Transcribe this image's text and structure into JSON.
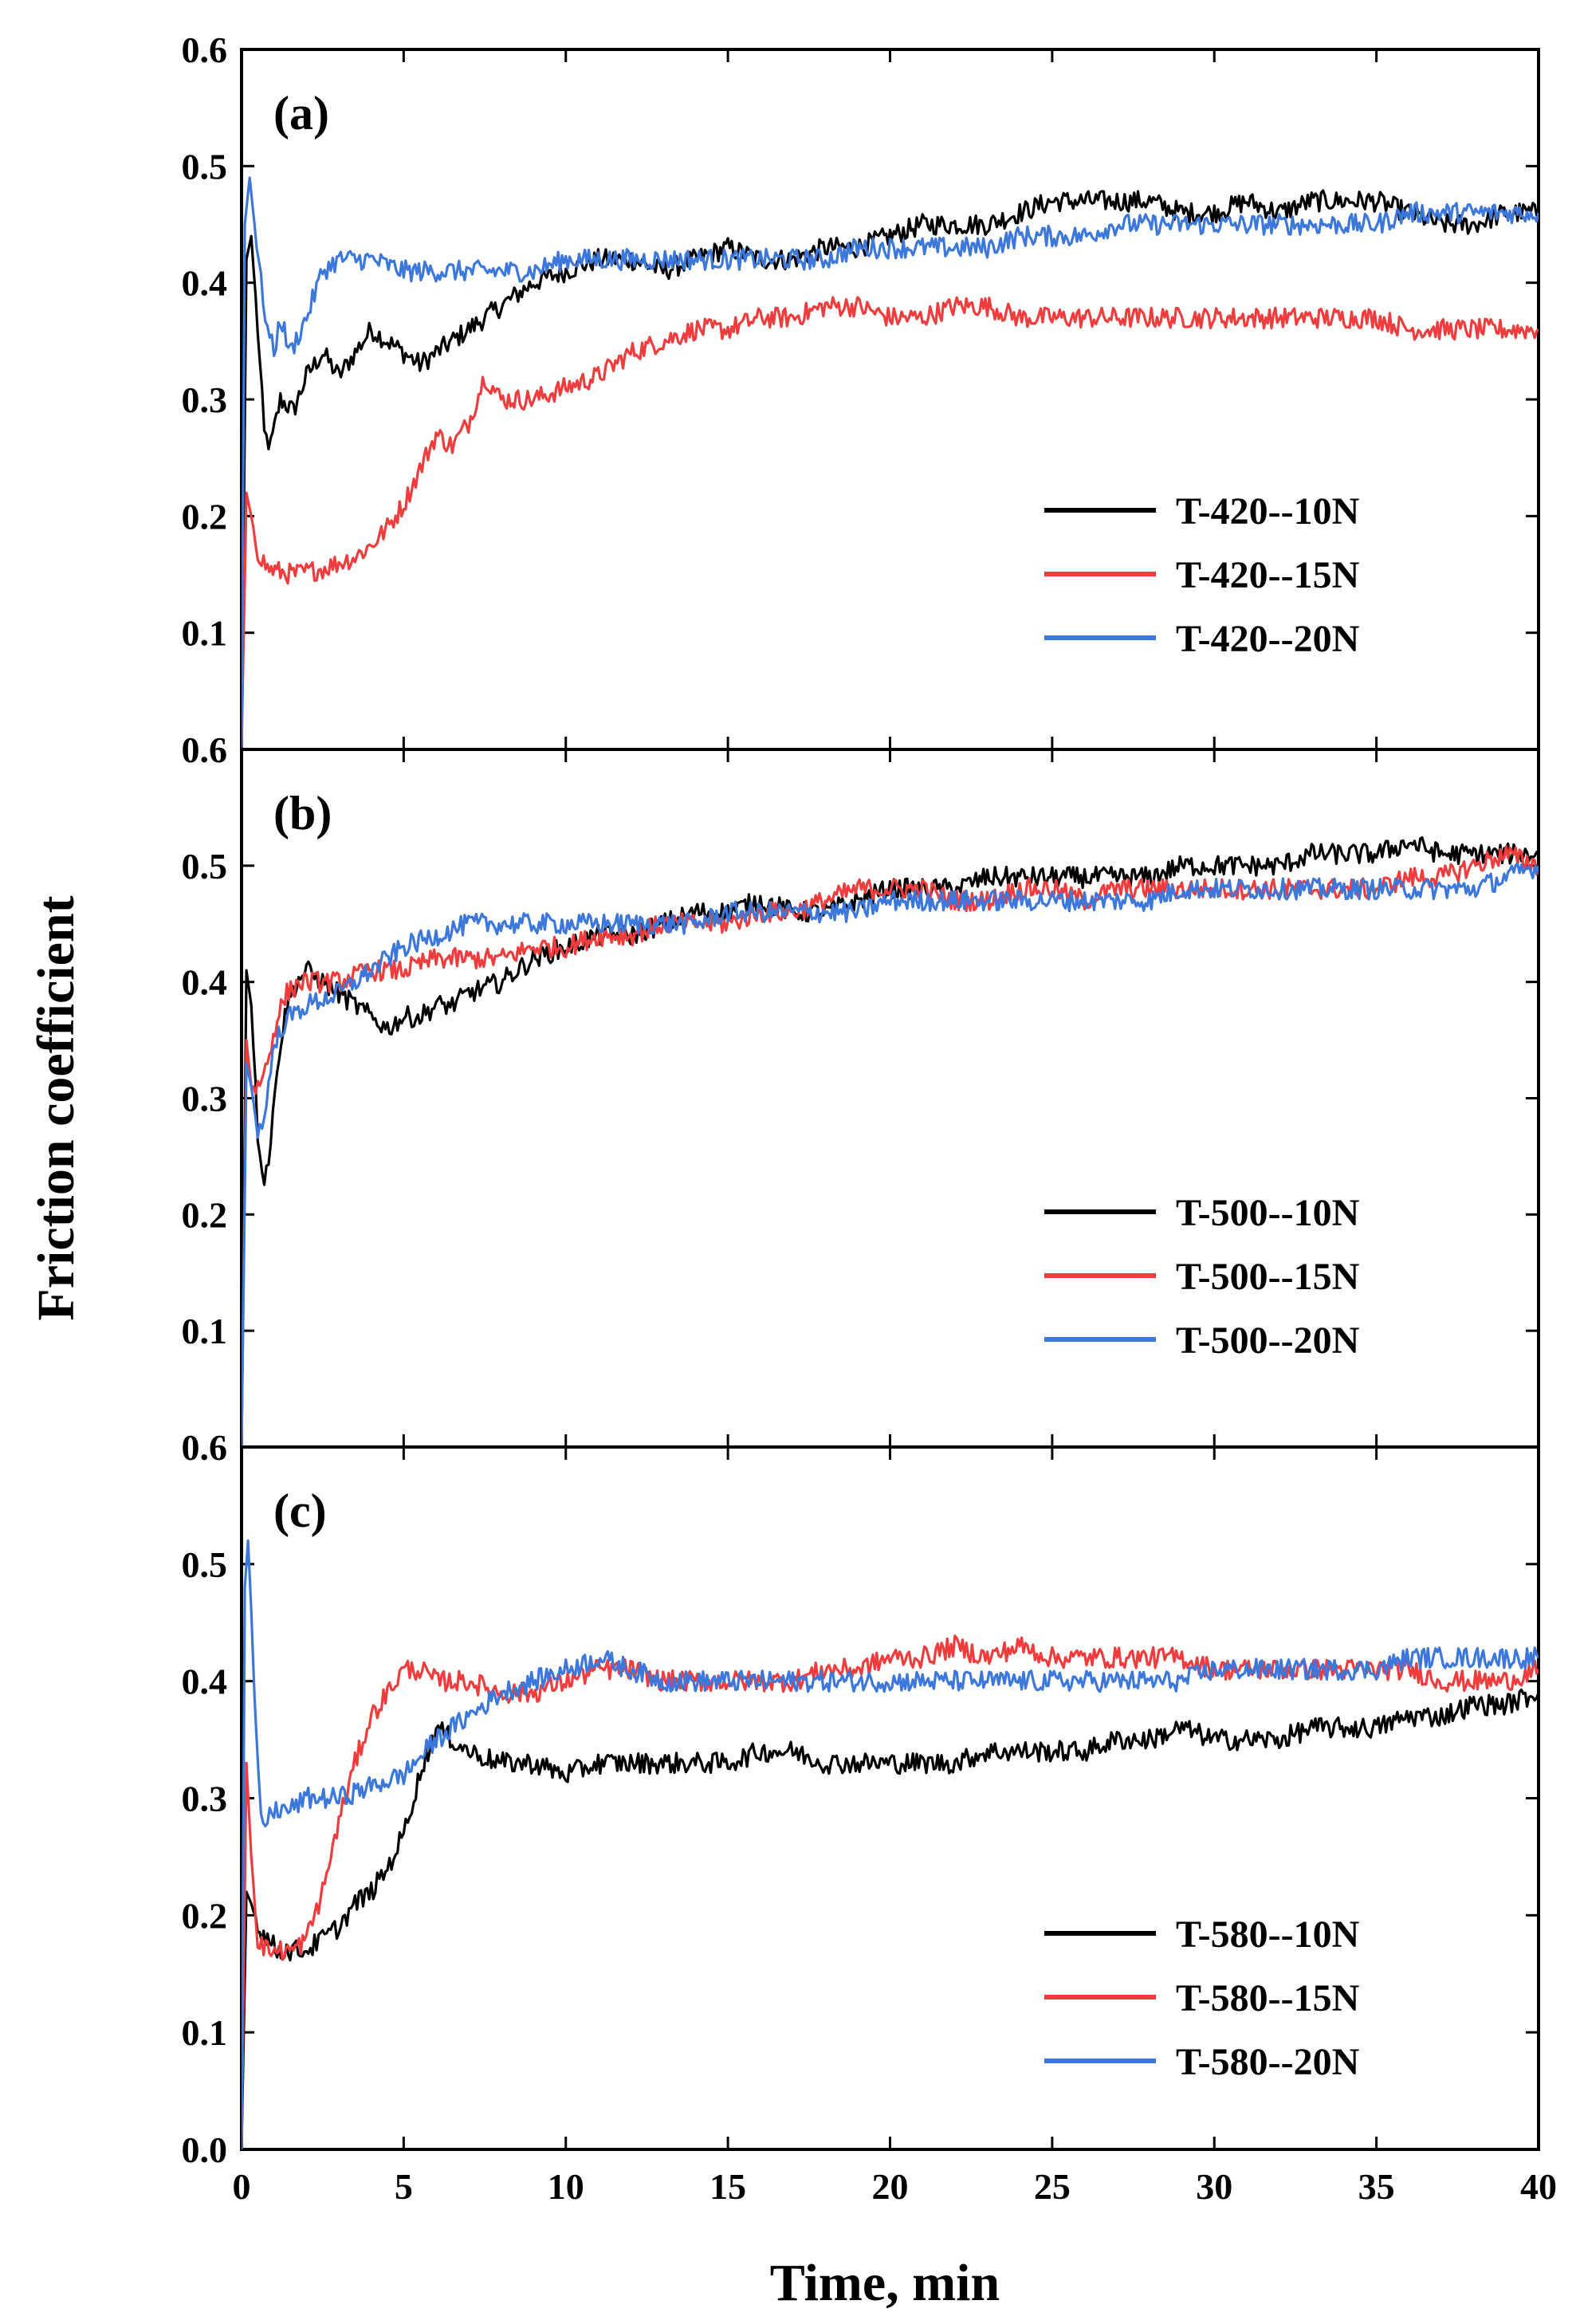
{
  "figure": {
    "ylabel": "Friction coefficient",
    "xlabel": "Time, min"
  },
  "chart_data": [
    {
      "type": "line",
      "panel_label": "(a)",
      "xlim": [
        0,
        40
      ],
      "ylim": [
        0,
        0.6
      ],
      "x_ticks": [
        0,
        5,
        10,
        15,
        20,
        25,
        30,
        35,
        40
      ],
      "y_ticks": [
        0.1,
        0.2,
        0.3,
        0.4,
        0.5,
        0.6
      ],
      "xlabel": "Time, min",
      "ylabel": "Friction coefficient",
      "legend_position": "center-right",
      "series": [
        {
          "name": "T-420--10N",
          "color": "#000000",
          "x": [
            0,
            0.15,
            0.3,
            0.5,
            0.7,
            0.9,
            1.2,
            1.6,
            2,
            2.5,
            3,
            3.5,
            4,
            4.5,
            5,
            5.5,
            6,
            7,
            8,
            9,
            10,
            11,
            12,
            13,
            14,
            15,
            16,
            17,
            18,
            19,
            20,
            21,
            22,
            23,
            24,
            25,
            26,
            27,
            28,
            29,
            30,
            31,
            32,
            33,
            34,
            35,
            36,
            37,
            38,
            39,
            40
          ],
          "y": [
            0.0,
            0.42,
            0.44,
            0.36,
            0.27,
            0.26,
            0.3,
            0.29,
            0.32,
            0.34,
            0.32,
            0.34,
            0.36,
            0.35,
            0.34,
            0.33,
            0.34,
            0.36,
            0.38,
            0.4,
            0.41,
            0.42,
            0.42,
            0.41,
            0.42,
            0.43,
            0.42,
            0.42,
            0.43,
            0.43,
            0.44,
            0.45,
            0.45,
            0.45,
            0.46,
            0.47,
            0.47,
            0.47,
            0.47,
            0.46,
            0.46,
            0.47,
            0.46,
            0.47,
            0.47,
            0.47,
            0.46,
            0.45,
            0.45,
            0.46,
            0.46
          ]
        },
        {
          "name": "T-420--15N",
          "color": "#f03c3c",
          "x": [
            0,
            0.15,
            0.3,
            0.5,
            0.8,
            1.2,
            1.6,
            2,
            2.5,
            3,
            3.5,
            4,
            4.5,
            5,
            5.5,
            6,
            6.5,
            7,
            7.5,
            8,
            9,
            10,
            11,
            12,
            13,
            14,
            15,
            16,
            17,
            18,
            19,
            20,
            21,
            22,
            23,
            24,
            25,
            26,
            27,
            28,
            29,
            30,
            31,
            32,
            33,
            34,
            35,
            36,
            37,
            38,
            39,
            40
          ],
          "y": [
            0.0,
            0.22,
            0.2,
            0.17,
            0.155,
            0.152,
            0.15,
            0.152,
            0.155,
            0.16,
            0.165,
            0.175,
            0.19,
            0.21,
            0.24,
            0.27,
            0.26,
            0.28,
            0.32,
            0.3,
            0.3,
            0.31,
            0.32,
            0.34,
            0.35,
            0.36,
            0.36,
            0.37,
            0.37,
            0.38,
            0.38,
            0.37,
            0.37,
            0.38,
            0.38,
            0.37,
            0.37,
            0.37,
            0.37,
            0.37,
            0.37,
            0.37,
            0.37,
            0.37,
            0.37,
            0.37,
            0.37,
            0.36,
            0.36,
            0.36,
            0.36,
            0.36
          ]
        },
        {
          "name": "T-420--20N",
          "color": "#3c78dc",
          "x": [
            0,
            0.1,
            0.25,
            0.4,
            0.6,
            0.8,
            1.0,
            1.2,
            1.5,
            2,
            2.5,
            3,
            4,
            5,
            6,
            7,
            8,
            9,
            10,
            11,
            12,
            13,
            14,
            15,
            16,
            17,
            18,
            19,
            20,
            21,
            22,
            23,
            24,
            25,
            26,
            27,
            28,
            29,
            30,
            31,
            32,
            33,
            34,
            35,
            36,
            37,
            38,
            39,
            40
          ],
          "y": [
            0.0,
            0.45,
            0.49,
            0.45,
            0.4,
            0.36,
            0.34,
            0.37,
            0.34,
            0.37,
            0.41,
            0.42,
            0.42,
            0.41,
            0.41,
            0.41,
            0.41,
            0.41,
            0.42,
            0.42,
            0.42,
            0.42,
            0.42,
            0.42,
            0.42,
            0.42,
            0.42,
            0.43,
            0.43,
            0.43,
            0.43,
            0.43,
            0.44,
            0.44,
            0.44,
            0.45,
            0.45,
            0.45,
            0.45,
            0.45,
            0.45,
            0.45,
            0.45,
            0.45,
            0.46,
            0.46,
            0.46,
            0.46,
            0.46
          ]
        }
      ]
    },
    {
      "type": "line",
      "panel_label": "(b)",
      "xlim": [
        0,
        40
      ],
      "ylim": [
        0,
        0.6
      ],
      "x_ticks": [
        0,
        5,
        10,
        15,
        20,
        25,
        30,
        35,
        40
      ],
      "y_ticks": [
        0.1,
        0.2,
        0.3,
        0.4,
        0.5,
        0.6
      ],
      "xlabel": "Time, min",
      "ylabel": "Friction coefficient",
      "legend_position": "center-right",
      "series": [
        {
          "name": "T-500--10N",
          "color": "#000000",
          "x": [
            0,
            0.15,
            0.3,
            0.5,
            0.7,
            0.9,
            1.1,
            1.4,
            1.7,
            2,
            2.5,
            3,
            3.5,
            4,
            4.5,
            5,
            5.5,
            6,
            6.5,
            7,
            8,
            9,
            10,
            11,
            12,
            13,
            14,
            15,
            16,
            17,
            18,
            19,
            20,
            21,
            22,
            23,
            24,
            25,
            26,
            27,
            28,
            29,
            30,
            31,
            32,
            33,
            34,
            35,
            36,
            37,
            38,
            39,
            40
          ],
          "y": [
            0.0,
            0.41,
            0.38,
            0.27,
            0.23,
            0.26,
            0.33,
            0.38,
            0.4,
            0.41,
            0.4,
            0.39,
            0.38,
            0.37,
            0.36,
            0.37,
            0.37,
            0.38,
            0.38,
            0.39,
            0.4,
            0.42,
            0.43,
            0.44,
            0.44,
            0.45,
            0.46,
            0.46,
            0.47,
            0.46,
            0.46,
            0.47,
            0.48,
            0.48,
            0.48,
            0.49,
            0.49,
            0.49,
            0.49,
            0.49,
            0.49,
            0.5,
            0.5,
            0.5,
            0.5,
            0.51,
            0.51,
            0.51,
            0.52,
            0.51,
            0.51,
            0.51,
            0.51
          ]
        },
        {
          "name": "T-500--15N",
          "color": "#f03c3c",
          "x": [
            0,
            0.15,
            0.3,
            0.5,
            0.8,
            1.1,
            1.4,
            1.8,
            2,
            3,
            4,
            5,
            6,
            7,
            8,
            9,
            10,
            11,
            12,
            13,
            14,
            15,
            16,
            17,
            18,
            19,
            20,
            21,
            22,
            23,
            24,
            25,
            26,
            27,
            28,
            29,
            30,
            31,
            32,
            33,
            34,
            35,
            36,
            37,
            38,
            39,
            40
          ],
          "y": [
            0.0,
            0.35,
            0.31,
            0.31,
            0.33,
            0.37,
            0.39,
            0.4,
            0.4,
            0.4,
            0.41,
            0.41,
            0.42,
            0.42,
            0.42,
            0.43,
            0.43,
            0.44,
            0.44,
            0.45,
            0.45,
            0.45,
            0.46,
            0.46,
            0.47,
            0.48,
            0.48,
            0.48,
            0.47,
            0.47,
            0.48,
            0.48,
            0.47,
            0.48,
            0.48,
            0.48,
            0.48,
            0.48,
            0.48,
            0.48,
            0.48,
            0.48,
            0.49,
            0.49,
            0.5,
            0.51,
            0.5
          ]
        },
        {
          "name": "T-500--20N",
          "color": "#3c78dc",
          "x": [
            0,
            0.15,
            0.3,
            0.5,
            0.7,
            0.9,
            1.2,
            1.5,
            2,
            3,
            4,
            5,
            6,
            7,
            8,
            9,
            10,
            11,
            12,
            13,
            14,
            15,
            16,
            17,
            18,
            19,
            20,
            21,
            22,
            23,
            24,
            25,
            26,
            27,
            28,
            29,
            30,
            31,
            32,
            33,
            34,
            35,
            36,
            37,
            38,
            39,
            40
          ],
          "y": [
            0.0,
            0.33,
            0.31,
            0.27,
            0.28,
            0.33,
            0.36,
            0.37,
            0.38,
            0.39,
            0.41,
            0.43,
            0.44,
            0.45,
            0.45,
            0.45,
            0.45,
            0.45,
            0.45,
            0.45,
            0.45,
            0.46,
            0.46,
            0.46,
            0.46,
            0.46,
            0.47,
            0.47,
            0.47,
            0.47,
            0.47,
            0.47,
            0.47,
            0.47,
            0.47,
            0.48,
            0.48,
            0.48,
            0.48,
            0.48,
            0.48,
            0.48,
            0.48,
            0.48,
            0.48,
            0.49,
            0.5
          ]
        }
      ]
    },
    {
      "type": "line",
      "panel_label": "(c)",
      "xlim": [
        0,
        40
      ],
      "ylim": [
        0,
        0.6
      ],
      "x_ticks": [
        0,
        5,
        10,
        15,
        20,
        25,
        30,
        35,
        40
      ],
      "y_ticks": [
        0.0,
        0.1,
        0.2,
        0.3,
        0.4,
        0.5,
        0.6
      ],
      "xlabel": "Time, min",
      "ylabel": "Friction coefficient",
      "legend_position": "bottom-right",
      "series": [
        {
          "name": "T-580--10N",
          "color": "#000000",
          "x": [
            0,
            0.15,
            0.3,
            0.5,
            0.8,
            1.1,
            1.5,
            2,
            2.5,
            3,
            3.5,
            4,
            4.5,
            5,
            5.5,
            6,
            6.5,
            7,
            8,
            9,
            10,
            11,
            12,
            13,
            14,
            15,
            16,
            17,
            18,
            19,
            20,
            21,
            22,
            23,
            24,
            25,
            26,
            27,
            28,
            29,
            30,
            31,
            32,
            33,
            34,
            35,
            36,
            37,
            38,
            39,
            40
          ],
          "y": [
            0.0,
            0.22,
            0.21,
            0.19,
            0.18,
            0.17,
            0.17,
            0.17,
            0.18,
            0.19,
            0.21,
            0.22,
            0.24,
            0.27,
            0.32,
            0.36,
            0.35,
            0.34,
            0.33,
            0.33,
            0.32,
            0.33,
            0.33,
            0.33,
            0.33,
            0.33,
            0.34,
            0.34,
            0.33,
            0.33,
            0.33,
            0.33,
            0.33,
            0.34,
            0.34,
            0.34,
            0.34,
            0.35,
            0.35,
            0.36,
            0.35,
            0.35,
            0.35,
            0.36,
            0.36,
            0.36,
            0.37,
            0.37,
            0.38,
            0.38,
            0.39
          ]
        },
        {
          "name": "T-580--15N",
          "color": "#f03c3c",
          "x": [
            0,
            0.15,
            0.3,
            0.5,
            0.8,
            1.2,
            1.6,
            2,
            2.5,
            3,
            3.5,
            4,
            4.5,
            5,
            5.5,
            6,
            7,
            8,
            9,
            10,
            11,
            12,
            13,
            14,
            15,
            16,
            17,
            18,
            19,
            20,
            21,
            22,
            23,
            24,
            25,
            26,
            27,
            28,
            29,
            30,
            31,
            32,
            33,
            34,
            35,
            36,
            37,
            38,
            39,
            40
          ],
          "y": [
            0.0,
            0.33,
            0.25,
            0.18,
            0.17,
            0.17,
            0.17,
            0.18,
            0.22,
            0.28,
            0.33,
            0.37,
            0.39,
            0.41,
            0.41,
            0.4,
            0.4,
            0.39,
            0.39,
            0.4,
            0.41,
            0.41,
            0.4,
            0.4,
            0.4,
            0.4,
            0.4,
            0.41,
            0.41,
            0.42,
            0.42,
            0.43,
            0.42,
            0.43,
            0.42,
            0.42,
            0.42,
            0.42,
            0.42,
            0.41,
            0.41,
            0.41,
            0.41,
            0.41,
            0.41,
            0.41,
            0.4,
            0.4,
            0.4,
            0.41
          ]
        },
        {
          "name": "T-580--20N",
          "color": "#3c78dc",
          "x": [
            0,
            0.1,
            0.2,
            0.3,
            0.45,
            0.6,
            0.8,
            1.0,
            1.5,
            2,
            3,
            4,
            5,
            6,
            7,
            8,
            9,
            10,
            11,
            12,
            13,
            14,
            15,
            16,
            17,
            18,
            19,
            20,
            21,
            22,
            23,
            24,
            25,
            26,
            27,
            28,
            29,
            30,
            31,
            32,
            33,
            34,
            35,
            36,
            37,
            38,
            39,
            40
          ],
          "y": [
            0.0,
            0.48,
            0.52,
            0.46,
            0.35,
            0.28,
            0.28,
            0.29,
            0.29,
            0.3,
            0.3,
            0.31,
            0.32,
            0.35,
            0.37,
            0.39,
            0.4,
            0.41,
            0.42,
            0.41,
            0.4,
            0.4,
            0.4,
            0.4,
            0.4,
            0.4,
            0.4,
            0.4,
            0.4,
            0.4,
            0.4,
            0.4,
            0.4,
            0.4,
            0.4,
            0.4,
            0.4,
            0.41,
            0.41,
            0.41,
            0.41,
            0.41,
            0.41,
            0.42,
            0.42,
            0.42,
            0.42,
            0.42
          ]
        }
      ]
    }
  ]
}
